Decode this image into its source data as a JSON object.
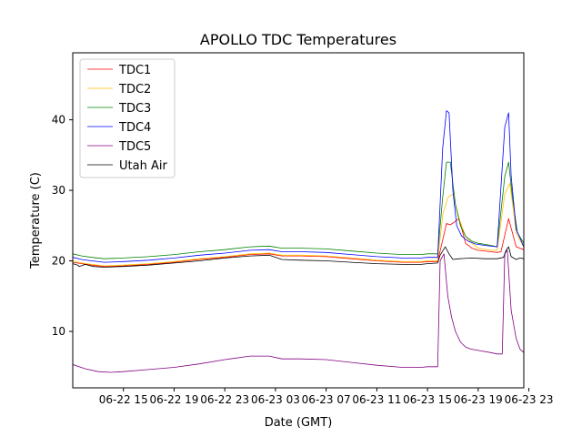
{
  "chart_data": {
    "type": "line",
    "title": "APOLLO TDC Temperatures",
    "xlabel": "Date (GMT)",
    "ylabel": "Temperature (C)",
    "xlim": [
      11.0,
      46.6
    ],
    "ylim": [
      2.0,
      49.5
    ],
    "grid": false,
    "legend_position": "top-left",
    "x_ticks": [
      {
        "x": 15,
        "label": "06-22 15"
      },
      {
        "x": 19,
        "label": "06-22 19"
      },
      {
        "x": 23,
        "label": "06-22 23"
      },
      {
        "x": 27,
        "label": "06-23 03"
      },
      {
        "x": 31,
        "label": "06-23 07"
      },
      {
        "x": 35,
        "label": "06-23 11"
      },
      {
        "x": 39,
        "label": "06-23 15"
      },
      {
        "x": 43,
        "label": "06-23 19"
      },
      {
        "x": 47,
        "label": "06-23 23"
      }
    ],
    "y_ticks": [
      {
        "y": 10,
        "label": "10"
      },
      {
        "y": 20,
        "label": "20"
      },
      {
        "y": 30,
        "label": "30"
      },
      {
        "y": 40,
        "label": "40"
      }
    ],
    "series": [
      {
        "name": "TDC1",
        "color": "#ff0000",
        "x": [
          11.0,
          11.7,
          12.5,
          13.5,
          15.0,
          17.0,
          19.0,
          21.0,
          23.0,
          25.0,
          26.5,
          27.5,
          29.0,
          31.0,
          33.0,
          35.0,
          37.0,
          38.5,
          39.0,
          39.8,
          40.5,
          40.8,
          41.5,
          42.0,
          42.5,
          43.0,
          44.0,
          44.5,
          44.8,
          45.4,
          46.0,
          46.6
        ],
        "values": [
          19.8,
          19.6,
          19.4,
          19.2,
          19.3,
          19.5,
          19.8,
          20.2,
          20.5,
          20.9,
          21.0,
          20.7,
          20.7,
          20.6,
          20.3,
          20.0,
          19.8,
          19.8,
          19.9,
          19.9,
          25.3,
          25.1,
          26.0,
          22.5,
          21.8,
          21.5,
          21.3,
          21.2,
          21.3,
          26.0,
          22.0,
          21.6
        ]
      },
      {
        "name": "TDC2",
        "color": "#ffbf00",
        "x": [
          11.0,
          11.7,
          12.5,
          13.5,
          15.0,
          17.0,
          19.0,
          21.0,
          23.0,
          25.0,
          26.5,
          27.5,
          29.0,
          31.0,
          33.0,
          35.0,
          37.0,
          38.5,
          39.0,
          39.8,
          40.2,
          40.6,
          41.0,
          41.5,
          42.0,
          42.5,
          43.0,
          44.0,
          44.5,
          45.1,
          45.5,
          46.0,
          46.6
        ],
        "values": [
          20.0,
          19.7,
          19.5,
          19.3,
          19.4,
          19.6,
          19.9,
          20.3,
          20.6,
          21.0,
          21.1,
          20.8,
          20.8,
          20.7,
          20.4,
          20.1,
          19.9,
          19.9,
          20.0,
          20.0,
          26.5,
          29.0,
          29.5,
          26.0,
          23.5,
          22.5,
          21.8,
          21.5,
          21.5,
          29.5,
          31.0,
          24.0,
          21.9
        ]
      },
      {
        "name": "TDC3",
        "color": "#008000",
        "x": [
          11.0,
          11.7,
          12.5,
          13.5,
          15.0,
          17.0,
          19.0,
          21.0,
          23.0,
          25.0,
          26.5,
          27.5,
          29.0,
          31.0,
          33.0,
          35.0,
          37.0,
          38.5,
          39.0,
          39.8,
          40.2,
          40.5,
          40.8,
          41.2,
          41.6,
          42.0,
          42.5,
          43.0,
          44.0,
          44.5,
          45.1,
          45.4,
          45.7,
          46.1,
          46.6
        ],
        "values": [
          21.0,
          20.7,
          20.5,
          20.3,
          20.4,
          20.6,
          20.9,
          21.3,
          21.6,
          22.0,
          22.1,
          21.8,
          21.8,
          21.7,
          21.4,
          21.1,
          20.9,
          20.9,
          21.0,
          21.0,
          29.0,
          34.0,
          34.0,
          28.0,
          25.0,
          23.5,
          22.8,
          22.5,
          22.2,
          22.0,
          32.0,
          34.0,
          29.0,
          24.0,
          22.5
        ]
      },
      {
        "name": "TDC4",
        "color": "#0000ff",
        "x": [
          11.0,
          11.7,
          12.5,
          13.5,
          15.0,
          17.0,
          19.0,
          21.0,
          23.0,
          25.0,
          26.5,
          27.5,
          29.0,
          31.0,
          33.0,
          35.0,
          37.0,
          38.5,
          39.0,
          39.8,
          40.2,
          40.5,
          40.7,
          41.0,
          41.3,
          41.7,
          42.2,
          42.8,
          43.5,
          44.5,
          45.1,
          45.4,
          45.6,
          46.0,
          46.6
        ],
        "values": [
          20.5,
          20.2,
          20.0,
          19.8,
          19.9,
          20.1,
          20.4,
          20.8,
          21.1,
          21.5,
          21.6,
          21.3,
          21.3,
          21.2,
          20.9,
          20.6,
          20.4,
          20.4,
          20.5,
          20.5,
          36.0,
          41.3,
          41.0,
          30.0,
          25.0,
          23.5,
          22.8,
          22.4,
          22.2,
          22.0,
          39.0,
          41.0,
          32.0,
          24.5,
          22.0
        ]
      },
      {
        "name": "TDC5",
        "color": "#800080",
        "x": [
          11.0,
          12.0,
          13.0,
          14.0,
          15.0,
          17.0,
          19.0,
          21.0,
          23.0,
          25.0,
          26.5,
          27.5,
          29.0,
          31.0,
          33.0,
          35.0,
          37.0,
          38.5,
          39.0,
          39.8,
          40.0,
          40.3,
          40.6,
          40.9,
          41.2,
          41.6,
          42.0,
          42.4,
          43.0,
          44.0,
          44.5,
          44.9,
          45.1,
          45.3,
          45.6,
          46.0,
          46.3,
          46.6
        ],
        "values": [
          5.3,
          4.7,
          4.3,
          4.2,
          4.3,
          4.6,
          4.9,
          5.4,
          6.0,
          6.5,
          6.5,
          6.1,
          6.1,
          6.0,
          5.6,
          5.2,
          4.9,
          4.9,
          5.0,
          5.0,
          20.0,
          21.0,
          15.0,
          12.0,
          10.0,
          8.5,
          7.8,
          7.5,
          7.3,
          7.0,
          6.8,
          6.8,
          21.0,
          21.5,
          13.0,
          9.0,
          7.5,
          7.0
        ]
      },
      {
        "name": "Utah Air",
        "color": "#000000",
        "x": [
          11.0,
          11.4,
          11.5,
          12.0,
          12.6,
          13.5,
          15.0,
          17.0,
          19.0,
          21.0,
          23.0,
          25.0,
          26.5,
          27.5,
          29.0,
          31.0,
          33.0,
          35.0,
          37.0,
          38.5,
          39.0,
          39.8,
          40.0,
          40.4,
          40.7,
          41.0,
          41.5,
          42.5,
          43.5,
          44.5,
          45.0,
          45.2,
          45.4,
          45.6,
          46.0,
          46.3,
          46.6
        ],
        "values": [
          19.6,
          19.4,
          19.2,
          19.5,
          19.2,
          19.1,
          19.2,
          19.4,
          19.7,
          20.0,
          20.4,
          20.7,
          20.8,
          20.2,
          20.1,
          20.0,
          19.8,
          19.6,
          19.5,
          19.5,
          19.6,
          19.7,
          20.8,
          22.0,
          21.0,
          20.2,
          20.3,
          20.4,
          20.3,
          20.3,
          20.5,
          21.5,
          22.0,
          20.6,
          20.2,
          20.4,
          20.3
        ]
      }
    ]
  }
}
